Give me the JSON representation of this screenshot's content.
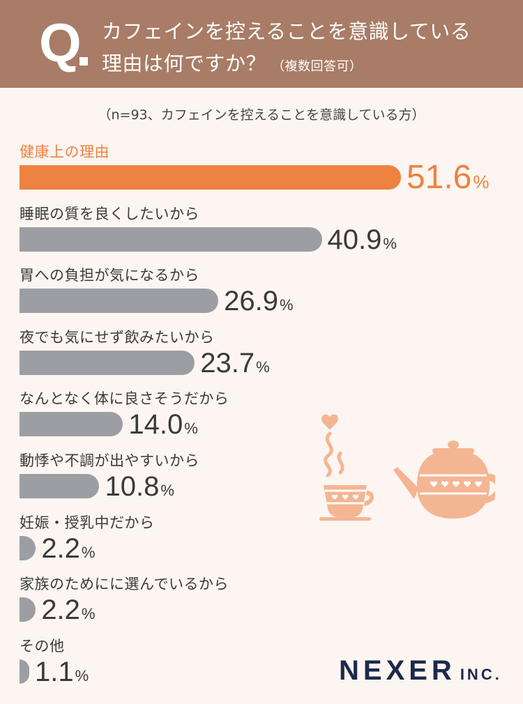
{
  "header": {
    "q_mark": "Q",
    "title_line1": "カフェインを控えることを意識している",
    "title_line2": "理由は何ですか？",
    "title_note": "（複数回答可）"
  },
  "sample_note": "（n=93、カフェインを控えることを意識している方）",
  "colors": {
    "highlight": "#ee8240",
    "bar": "#9d9ea3",
    "header_bg": "#a87c66",
    "page_bg": "#fcf5f1",
    "illustration": "#f4b593"
  },
  "illustration": {
    "icon": "teapot-and-cup-with-heart-steam-icon"
  },
  "brand": {
    "main": "NEXER",
    "sub": "INC."
  },
  "chart_data": {
    "type": "bar",
    "orientation": "horizontal",
    "unit": "%",
    "xlim": [
      0,
      100
    ],
    "grid": false,
    "categories": [
      "健康上の理由",
      "睡眠の質を良くしたいから",
      "胃への負担が気になるから",
      "夜でも気にせず飲みたいから",
      "なんとなく体に良さそうだから",
      "動悸や不調が出やすいから",
      "妊娠・授乳中だから",
      "家族のためにに選んでいるから",
      "その他"
    ],
    "values": [
      51.6,
      40.9,
      26.9,
      23.7,
      14.0,
      10.8,
      2.2,
      2.2,
      1.1
    ],
    "value_labels": [
      "51.6",
      "40.9",
      "26.9",
      "23.7",
      "14.0",
      "10.8",
      "2.2",
      "2.2",
      "1.1"
    ],
    "highlight_index": 0
  }
}
